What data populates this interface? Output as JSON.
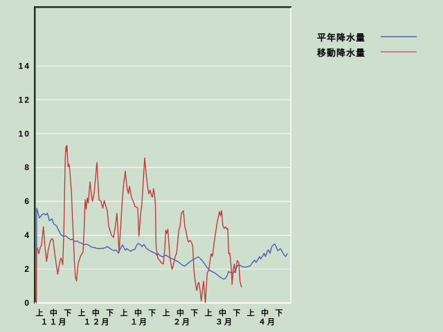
{
  "page": {
    "background_color": "#cedfce"
  },
  "legend": {
    "items": [
      {
        "label": "平年降水量",
        "swatch_color": "#7280c2",
        "series": "normal"
      },
      {
        "label": "移動降水量",
        "swatch_color": "#c27f7f",
        "series": "moving"
      }
    ]
  },
  "chart_data": {
    "type": "line",
    "title": "",
    "y_axis": {
      "min": 0,
      "max_visible": 17.5,
      "tick_step": 2,
      "tick_labels": [
        "0",
        "2",
        "4",
        "6",
        "8",
        "10",
        "12",
        "14"
      ],
      "gridlines": true,
      "gridline_color": "#edf4ed"
    },
    "x_axis": {
      "period_labels": [
        "上",
        "中",
        "下"
      ],
      "months": [
        "１１月",
        "１２月",
        "１月",
        "２月",
        "３月",
        "４月"
      ],
      "note": "x values of points are pixel positions along time axis; 11月上 tick at 57px, one 旬 = 20.35px"
    },
    "frame_colors": {
      "dark_edge": "#1a331a",
      "light_edge": "#ffffff"
    },
    "series": [
      {
        "name": "平年降水量",
        "color": "#4b5cb8",
        "points": [
          [
            52.5,
            0
          ],
          [
            53,
            5.6
          ],
          [
            57,
            5.02
          ],
          [
            60,
            5.18
          ],
          [
            63,
            5.28
          ],
          [
            66,
            5.2
          ],
          [
            68.5,
            5.3
          ],
          [
            71.5,
            4.85
          ],
          [
            75,
            4.97
          ],
          [
            78,
            4.65
          ],
          [
            81.5,
            4.57
          ],
          [
            85,
            4.27
          ],
          [
            88,
            4.03
          ],
          [
            91.5,
            3.94
          ],
          [
            95,
            3.97
          ],
          [
            98,
            3.85
          ],
          [
            101.5,
            3.74
          ],
          [
            105,
            3.76
          ],
          [
            108,
            3.63
          ],
          [
            111.5,
            3.66
          ],
          [
            115,
            3.56
          ],
          [
            118,
            3.53
          ],
          [
            121.5,
            3.44
          ],
          [
            125,
            3.47
          ],
          [
            128,
            3.42
          ],
          [
            131,
            3.33
          ],
          [
            134,
            3.28
          ],
          [
            137,
            3.27
          ],
          [
            140,
            3.22
          ],
          [
            143,
            3.21
          ],
          [
            146,
            3.22
          ],
          [
            150,
            3.23
          ],
          [
            153,
            3.28
          ],
          [
            155,
            3.33
          ],
          [
            158,
            3.25
          ],
          [
            161,
            3.16
          ],
          [
            164,
            3.1
          ],
          [
            168,
            3.13
          ],
          [
            171,
            2.94
          ],
          [
            174,
            3.21
          ],
          [
            177,
            3.43
          ],
          [
            181,
            3.12
          ],
          [
            183,
            3.21
          ],
          [
            186,
            3.12
          ],
          [
            189,
            3.05
          ],
          [
            191,
            3.12
          ],
          [
            195,
            3.18
          ],
          [
            197,
            3.39
          ],
          [
            200,
            3.52
          ],
          [
            203,
            3.43
          ],
          [
            205,
            3.33
          ],
          [
            208,
            3.46
          ],
          [
            211,
            3.25
          ],
          [
            215,
            3.12
          ],
          [
            218,
            3.05
          ],
          [
            221,
            2.99
          ],
          [
            225,
            2.92
          ],
          [
            226.5,
            2.81
          ],
          [
            229,
            2.9
          ],
          [
            231.5,
            2.79
          ],
          [
            235,
            2.72
          ],
          [
            237,
            2.79
          ],
          [
            240,
            2.82
          ],
          [
            243,
            2.73
          ],
          [
            246.5,
            2.65
          ],
          [
            250,
            2.59
          ],
          [
            253,
            2.52
          ],
          [
            256.5,
            2.46
          ],
          [
            260,
            2.35
          ],
          [
            263,
            2.25
          ],
          [
            266.5,
            2.18
          ],
          [
            270,
            2.28
          ],
          [
            273,
            2.39
          ],
          [
            276.5,
            2.5
          ],
          [
            280,
            2.59
          ],
          [
            283,
            2.65
          ],
          [
            286.5,
            2.72
          ],
          [
            290,
            2.6
          ],
          [
            293,
            2.45
          ],
          [
            296.5,
            2.25
          ],
          [
            300,
            2.05
          ],
          [
            303,
            1.92
          ],
          [
            306.5,
            1.85
          ],
          [
            310,
            1.78
          ],
          [
            313,
            1.7
          ],
          [
            316.5,
            1.57
          ],
          [
            320,
            1.48
          ],
          [
            323,
            1.4
          ],
          [
            325.5,
            1.44
          ],
          [
            328,
            1.6
          ],
          [
            330,
            1.85
          ],
          [
            333,
            1.79
          ],
          [
            336.5,
            1.77
          ],
          [
            339,
            1.85
          ],
          [
            343,
            2.19
          ],
          [
            345,
            2.26
          ],
          [
            348,
            2.19
          ],
          [
            351.5,
            2.12
          ],
          [
            355,
            2.12
          ],
          [
            358,
            2.15
          ],
          [
            361.5,
            2.19
          ],
          [
            365,
            2.4
          ],
          [
            368,
            2.53
          ],
          [
            370,
            2.4
          ],
          [
            373,
            2.6
          ],
          [
            375,
            2.74
          ],
          [
            376.5,
            2.6
          ],
          [
            380,
            2.8
          ],
          [
            381.5,
            2.94
          ],
          [
            383.5,
            2.74
          ],
          [
            386.5,
            3.08
          ],
          [
            388,
            3.14
          ],
          [
            390,
            2.94
          ],
          [
            393,
            3.35
          ],
          [
            396.5,
            3.49
          ],
          [
            398,
            3.42
          ],
          [
            400,
            3.21
          ],
          [
            401.5,
            3.08
          ],
          [
            405,
            3.21
          ],
          [
            408,
            3.01
          ],
          [
            410,
            2.87
          ],
          [
            412.5,
            2.74
          ],
          [
            415,
            2.91
          ]
        ]
      },
      {
        "name": "移動降水量",
        "color": "#c13b3b",
        "points": [
          [
            52.5,
            0
          ],
          [
            53,
            3.2
          ],
          [
            54,
            3.25
          ],
          [
            56,
            2.9
          ],
          [
            58.3,
            3.3
          ],
          [
            60,
            3.4
          ],
          [
            62.7,
            4.5
          ],
          [
            65,
            3.3
          ],
          [
            67.3,
            2.45
          ],
          [
            70,
            3.2
          ],
          [
            72.7,
            3.65
          ],
          [
            75,
            3.8
          ],
          [
            76.7,
            3.72
          ],
          [
            80,
            2.65
          ],
          [
            83.3,
            1.7
          ],
          [
            86.7,
            2.5
          ],
          [
            88.3,
            2.65
          ],
          [
            90.7,
            2.25
          ],
          [
            92.3,
            4.3
          ],
          [
            93.3,
            6.6
          ],
          [
            94.3,
            8.6
          ],
          [
            95.3,
            9.25
          ],
          [
            96,
            8.95
          ],
          [
            96.7,
            9.3
          ],
          [
            98.3,
            8.05
          ],
          [
            99.7,
            8.2
          ],
          [
            100.7,
            7.9
          ],
          [
            103.3,
            6.5
          ],
          [
            104.5,
            5.2
          ],
          [
            106,
            3.9
          ],
          [
            107.5,
            2.4
          ],
          [
            109,
            1.55
          ],
          [
            110.5,
            1.3
          ],
          [
            113,
            2.35
          ],
          [
            116.7,
            2.8
          ],
          [
            120,
            3.0
          ],
          [
            121.5,
            4.3
          ],
          [
            123,
            6.1
          ],
          [
            124.5,
            5.55
          ],
          [
            126,
            6.2
          ],
          [
            127.5,
            5.9
          ],
          [
            130,
            7.15
          ],
          [
            132,
            6.4
          ],
          [
            133.5,
            6.0
          ],
          [
            136,
            6.5
          ],
          [
            138,
            7.4
          ],
          [
            140,
            8.3
          ],
          [
            143,
            6.1
          ],
          [
            146,
            6.0
          ],
          [
            148.5,
            5.6
          ],
          [
            150.5,
            6.05
          ],
          [
            153,
            5.7
          ],
          [
            155,
            5.45
          ],
          [
            157,
            4.55
          ],
          [
            161,
            4.0
          ],
          [
            164,
            3.88
          ],
          [
            166.5,
            4.5
          ],
          [
            169,
            5.3
          ],
          [
            172,
            3.0
          ],
          [
            174.5,
            4.6
          ],
          [
            176.5,
            6.0
          ],
          [
            178.5,
            7.0
          ],
          [
            181,
            7.78
          ],
          [
            183.5,
            6.8
          ],
          [
            185.5,
            6.45
          ],
          [
            187,
            6.9
          ],
          [
            190,
            6.25
          ],
          [
            193,
            5.95
          ],
          [
            195,
            5.7
          ],
          [
            197.5,
            5.65
          ],
          [
            199,
            5.6
          ],
          [
            200.7,
            3.95
          ],
          [
            203.3,
            5.3
          ],
          [
            205,
            5.85
          ],
          [
            207,
            7.2
          ],
          [
            209,
            8.57
          ],
          [
            211.5,
            7.5
          ],
          [
            213.5,
            6.8
          ],
          [
            215,
            6.45
          ],
          [
            217,
            6.67
          ],
          [
            219,
            6.3
          ],
          [
            220.5,
            6.26
          ],
          [
            221.7,
            6.75
          ],
          [
            223.5,
            6.35
          ],
          [
            224.5,
            5.8
          ],
          [
            225.5,
            3.3
          ],
          [
            228,
            2.64
          ],
          [
            231,
            2.5
          ],
          [
            233,
            2.37
          ],
          [
            236,
            2.3
          ],
          [
            238,
            3.2
          ],
          [
            239.5,
            4.3
          ],
          [
            241,
            4.1
          ],
          [
            242.5,
            4.37
          ],
          [
            245.5,
            2.66
          ],
          [
            248.5,
            1.98
          ],
          [
            250,
            2.18
          ],
          [
            253.5,
            2.8
          ],
          [
            255,
            2.9
          ],
          [
            258.5,
            4.35
          ],
          [
            260,
            4.5
          ],
          [
            262,
            5.3
          ],
          [
            265,
            5.45
          ],
          [
            267,
            4.5
          ],
          [
            268.5,
            4.3
          ],
          [
            270,
            3.95
          ],
          [
            272,
            3.6
          ],
          [
            274.5,
            3.7
          ],
          [
            277,
            3.55
          ],
          [
            278.5,
            3.3
          ],
          [
            280,
            2.03
          ],
          [
            281.7,
            1.35
          ],
          [
            284.3,
            0.73
          ],
          [
            286,
            1.14
          ],
          [
            287.3,
            1.21
          ],
          [
            289.3,
            0.67
          ],
          [
            290.7,
            0.12
          ],
          [
            294,
            1.28
          ],
          [
            296.7,
            0.02
          ],
          [
            299.3,
            1.76
          ],
          [
            301.7,
            1.96
          ],
          [
            303.3,
            2.45
          ],
          [
            305,
            2.9
          ],
          [
            307,
            2.75
          ],
          [
            310,
            3.75
          ],
          [
            312,
            4.3
          ],
          [
            313.5,
            4.7
          ],
          [
            315,
            5.0
          ],
          [
            317,
            5.4
          ],
          [
            318.5,
            5.15
          ],
          [
            320,
            5.46
          ],
          [
            322,
            4.55
          ],
          [
            324,
            4.4
          ],
          [
            326,
            4.5
          ],
          [
            327.5,
            4.37
          ],
          [
            329,
            4.4
          ],
          [
            330.5,
            2.9
          ],
          [
            332,
            2.95
          ],
          [
            334,
            2.1
          ],
          [
            335.3,
            1.1
          ],
          [
            337,
            2.0
          ],
          [
            338.5,
            2.3
          ],
          [
            340,
            1.78
          ],
          [
            342.7,
            2.5
          ],
          [
            345,
            2.4
          ],
          [
            346.7,
            1.3
          ],
          [
            348.3,
            1.0
          ],
          [
            349.3,
            0.95
          ]
        ]
      }
    ]
  }
}
